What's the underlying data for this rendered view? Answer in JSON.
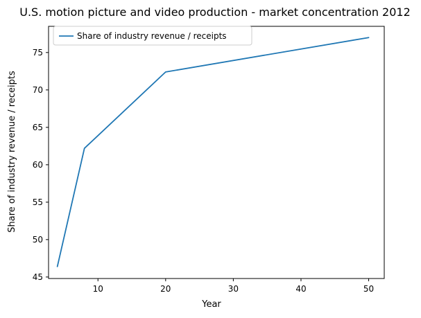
{
  "chart_data": {
    "type": "line",
    "title": "U.S. motion picture and video production - market concentration 2012",
    "xlabel": "Year",
    "ylabel": "Share of industry revenue / receipts",
    "xlim": [
      2.7,
      52.3
    ],
    "ylim": [
      44.8,
      78.5
    ],
    "xticks": [
      10,
      20,
      30,
      40,
      50
    ],
    "xtick_labels": [
      "10",
      "20",
      "30",
      "40",
      "50"
    ],
    "yticks": [
      45,
      50,
      55,
      60,
      65,
      70,
      75
    ],
    "ytick_labels": [
      "45",
      "50",
      "55",
      "60",
      "65",
      "70",
      "75"
    ],
    "grid": false,
    "legend_position": "top-left",
    "series": [
      {
        "name": "Share of industry revenue / receipts",
        "color": "#1f77b4",
        "x": [
          4,
          8,
          20,
          50
        ],
        "y": [
          46.4,
          62.2,
          72.4,
          77.0
        ]
      }
    ]
  }
}
